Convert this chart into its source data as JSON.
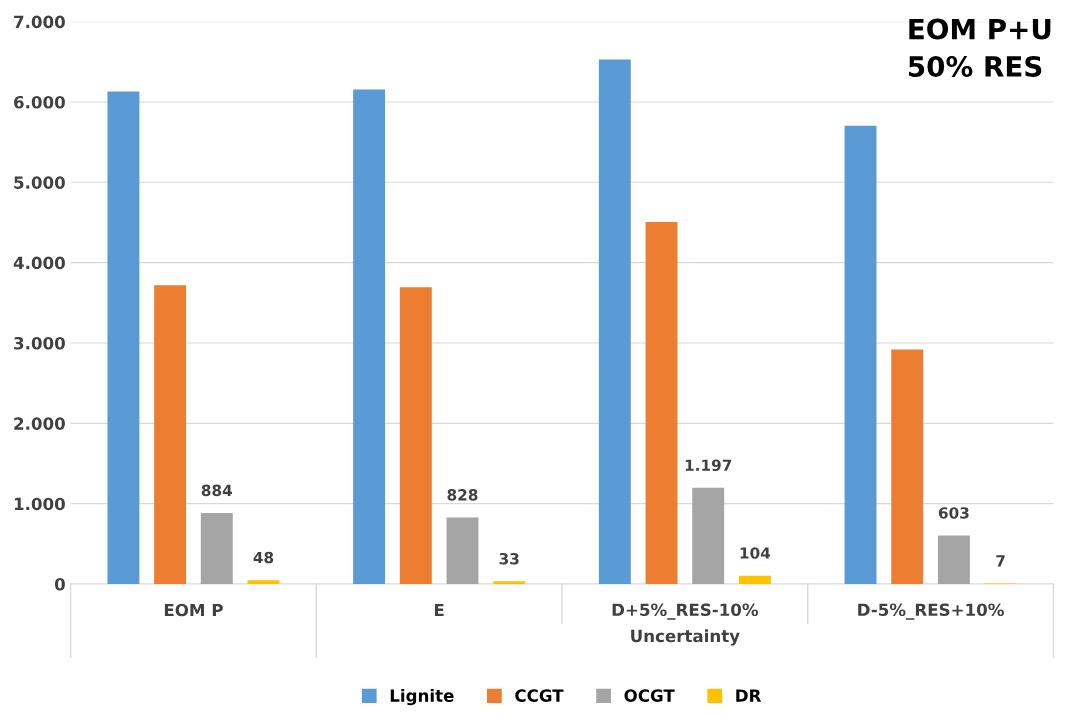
{
  "chart_data": {
    "type": "bar",
    "title": "EOM P+U\n50% RES",
    "xlabel": "Uncertainty",
    "categories": [
      "EOM P",
      "E",
      "D+5%_RES-10%",
      "D-5%_RES+10%"
    ],
    "series": [
      {
        "name": "Lignite",
        "color": "#5b9bd5",
        "values": [
          6130,
          6155,
          6530,
          5705
        ]
      },
      {
        "name": "CCGT",
        "color": "#ed7d31",
        "values": [
          3720,
          3695,
          4505,
          2920
        ]
      },
      {
        "name": "OCGT",
        "color": "#a5a5a5",
        "values": [
          884,
          828,
          1197,
          603
        ],
        "value_labels": [
          "884",
          "828",
          "1.197",
          "603"
        ]
      },
      {
        "name": "DR",
        "color": "#ffc000",
        "values": [
          48,
          33,
          104,
          7
        ],
        "value_labels": [
          "48",
          "33",
          "104",
          "7"
        ]
      }
    ],
    "ylim": [
      0,
      7000
    ],
    "yticks": [
      {
        "value": 0,
        "label": "0"
      },
      {
        "value": 1000,
        "label": "1.000"
      },
      {
        "value": 2000,
        "label": "2.000"
      },
      {
        "value": 3000,
        "label": "3.000"
      },
      {
        "value": 4000,
        "label": "4.000"
      },
      {
        "value": 5000,
        "label": "5.000"
      },
      {
        "value": 6000,
        "label": "6.000"
      },
      {
        "value": 7000,
        "label": "7.000"
      }
    ],
    "grid": "y",
    "legend": "bottom"
  }
}
